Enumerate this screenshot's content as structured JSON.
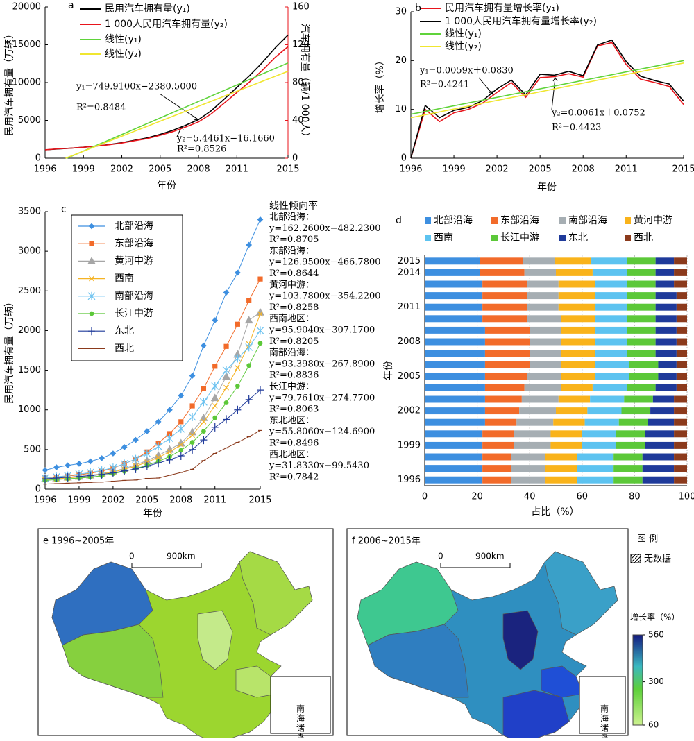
{
  "chart_data": [
    {
      "type": "line",
      "label": "a",
      "x": [
        1996,
        1997,
        1998,
        1999,
        2000,
        2001,
        2002,
        2003,
        2004,
        2005,
        2006,
        2007,
        2008,
        2009,
        2010,
        2011,
        2012,
        2013,
        2014,
        2015
      ],
      "xlim": [
        1996,
        2015
      ],
      "xticks": [
        1996,
        1999,
        2002,
        2005,
        2008,
        2011,
        2015
      ],
      "xlabel": "年份",
      "ylabel": "民用汽车拥有量（万辆）",
      "ylim": [
        0,
        20000
      ],
      "yticks": [
        0,
        5000,
        10000,
        15000,
        20000
      ],
      "y2label": "汽车拥有量（辆/1 000人）",
      "y2lim": [
        0,
        160
      ],
      "y2ticks": [
        0,
        40,
        80,
        120,
        160
      ],
      "series": [
        {
          "name": "民用汽车拥有量(y₁)",
          "color": "#000000",
          "values": [
            1100,
            1220,
            1320,
            1450,
            1610,
            1800,
            2050,
            2380,
            2690,
            3160,
            3700,
            4360,
            5100,
            6280,
            7800,
            9360,
            10930,
            12670,
            14600,
            16280
          ]
        },
        {
          "name": "1 000人民用汽车拥有量(y₂)",
          "color": "#e8141b",
          "axis": "y2",
          "values": [
            8.9,
            9.9,
            10.6,
            11.5,
            12.8,
            14.2,
            16.0,
            18.5,
            20.8,
            24.2,
            28.1,
            33.0,
            38.4,
            47.0,
            58.2,
            69.5,
            80.7,
            93.1,
            106.7,
            118.1
          ]
        },
        {
          "name": "线性(y₁)",
          "color": "#5fd33a",
          "x": [
            1997.7,
            2015
          ],
          "values": [
            0,
            12600
          ]
        },
        {
          "name": "线性(y₂)",
          "color": "#f0e630",
          "axis": "y2",
          "x": [
            1997.6,
            2015
          ],
          "values": [
            0,
            92
          ]
        }
      ],
      "annotations": [
        "y₁=749.9100x−2380.5000",
        "R²=0.8484",
        "y₂=5.4461x−16.1660",
        "R²=0.8526"
      ]
    },
    {
      "type": "line",
      "label": "b",
      "x": [
        1996,
        1997,
        1998,
        1999,
        2000,
        2001,
        2002,
        2003,
        2004,
        2005,
        2006,
        2007,
        2008,
        2009,
        2010,
        2011,
        2012,
        2013,
        2014,
        2015
      ],
      "xlim": [
        1996,
        2015
      ],
      "xticks": [
        1996,
        1999,
        2002,
        2005,
        2008,
        2011,
        2015
      ],
      "xlabel": "年份",
      "ylabel": "增长率（%）",
      "ylim": [
        0,
        30
      ],
      "yticks": [
        0,
        10,
        20,
        30
      ],
      "series": [
        {
          "name": "民用汽车拥有量增长率(y₁)",
          "color": "#e8141b",
          "values": [
            0,
            10,
            7.5,
            9.3,
            10.0,
            11.3,
            13.5,
            15.5,
            12.5,
            16.5,
            16.7,
            17.3,
            16.6,
            23.0,
            23.7,
            19.2,
            16.2,
            15.5,
            14.7,
            11.0
          ]
        },
        {
          "name": "1 000人民用汽车拥有量增长率(y₂)",
          "color": "#000000",
          "values": [
            0,
            10.8,
            8.3,
            9.8,
            10.4,
            11.8,
            14.2,
            16.0,
            13.0,
            17.2,
            17.0,
            17.8,
            16.9,
            23.2,
            24.2,
            19.8,
            16.8,
            15.9,
            15.2,
            11.7
          ]
        },
        {
          "name": "线性(y₁)",
          "color": "#5fd33a",
          "x": [
            1996,
            2015
          ],
          "values": [
            9,
            20
          ]
        },
        {
          "name": "线性(y₂)",
          "color": "#f0e630",
          "x": [
            1996,
            2015
          ],
          "values": [
            8.3,
            19.5
          ]
        }
      ],
      "annotations": [
        "y₁=0.0059x＋0.0830",
        "R²=0.4241",
        "y₂=0.0061x＋0.0752",
        "R²=0.4423"
      ]
    },
    {
      "type": "line",
      "label": "c",
      "x": [
        1996,
        1997,
        1998,
        1999,
        2000,
        2001,
        2002,
        2003,
        2004,
        2005,
        2006,
        2007,
        2008,
        2009,
        2010,
        2011,
        2012,
        2013,
        2014,
        2015
      ],
      "xlim": [
        1996,
        2015
      ],
      "xticks": [
        1996,
        1999,
        2002,
        2005,
        2008,
        2011,
        2015
      ],
      "xlabel": "年份",
      "ylabel": "民用汽车拥有量（万辆）",
      "ylim": [
        0,
        3500
      ],
      "yticks": [
        0,
        500,
        1000,
        1500,
        2000,
        2500,
        3000,
        3500
      ],
      "series": [
        {
          "name": "北部沿海",
          "color": "#3d8fe0",
          "marker": "diamond",
          "values": [
            240,
            275,
            300,
            320,
            350,
            390,
            450,
            530,
            620,
            730,
            850,
            1000,
            1180,
            1430,
            1810,
            2130,
            2480,
            2730,
            3080,
            3400
          ]
        },
        {
          "name": "东部沿海",
          "color": "#f26b2a",
          "marker": "square",
          "values": [
            140,
            150,
            165,
            180,
            200,
            225,
            265,
            320,
            380,
            470,
            580,
            700,
            850,
            1050,
            1270,
            1550,
            1800,
            2080,
            2380,
            2650
          ]
        },
        {
          "name": "黄河中游",
          "color": "#a6a6a6",
          "marker": "triangle",
          "values": [
            130,
            140,
            150,
            160,
            175,
            195,
            225,
            260,
            305,
            360,
            425,
            500,
            580,
            720,
            900,
            1150,
            1420,
            1700,
            2130,
            2230
          ]
        },
        {
          "name": "西南",
          "color": "#f5b324",
          "marker": "x",
          "values": [
            120,
            130,
            140,
            155,
            170,
            190,
            215,
            250,
            290,
            340,
            400,
            470,
            560,
            680,
            850,
            1050,
            1280,
            1530,
            1830,
            2210
          ]
        },
        {
          "name": "南部沿海",
          "color": "#6ec3f0",
          "marker": "asterisk",
          "values": [
            140,
            155,
            170,
            190,
            210,
            235,
            270,
            320,
            380,
            450,
            540,
            640,
            760,
            910,
            1100,
            1300,
            1500,
            1650,
            1790,
            2000
          ]
        },
        {
          "name": "长江中游",
          "color": "#5cc839",
          "marker": "circle",
          "values": [
            110,
            120,
            130,
            140,
            150,
            170,
            195,
            225,
            260,
            300,
            350,
            410,
            490,
            590,
            730,
            900,
            1090,
            1300,
            1560,
            1840
          ]
        },
        {
          "name": "东北",
          "color": "#1f3a9a",
          "marker": "plus",
          "values": [
            130,
            140,
            150,
            160,
            170,
            185,
            205,
            230,
            255,
            290,
            330,
            370,
            420,
            500,
            620,
            780,
            880,
            1000,
            1130,
            1250
          ]
        },
        {
          "name": "西北",
          "color": "#8b3a1c",
          "marker": "dash",
          "values": [
            65,
            70,
            75,
            80,
            85,
            90,
            100,
            110,
            115,
            135,
            140,
            175,
            210,
            250,
            360,
            450,
            520,
            590,
            660,
            740
          ]
        }
      ],
      "fit_title": "线性倾向率",
      "fit_lines": [
        "北部沿海：",
        "y=162.2600x−482.2300",
        "R²=0.8705",
        "东部沿海：",
        "y=126.9500x−466.7800",
        "R²=0.8644",
        "黄河中游：",
        "y=103.7800x−354.2200",
        "R²=0.8258",
        "西南地区：",
        "y=95.9040x−307.1700",
        "R²=0.8205",
        "南部沿海：",
        "y=93.3980x−267.8900",
        "R²=0.8836",
        "长江中游：",
        "y=79.7610x−274.7700",
        "R²=0.8063",
        "东北地区：",
        "y=55.8060x−124.6900",
        "R²=0.8496",
        "西北地区：",
        "y=31.8330x−99.5430",
        "R²=0.7842"
      ]
    },
    {
      "type": "stacked_barh",
      "label": "d",
      "categories": [
        1996,
        null,
        null,
        1999,
        null,
        null,
        2002,
        null,
        null,
        2005,
        null,
        null,
        2008,
        null,
        null,
        2011,
        null,
        null,
        2014,
        2015
      ],
      "xlim": [
        0,
        100
      ],
      "xticks": [
        0,
        20,
        40,
        60,
        80,
        100
      ],
      "xlabel": "占比（%）",
      "ylabel": "年份",
      "grid": true,
      "series": [
        {
          "name": "北部沿海",
          "color": "#3d8fe0",
          "values": [
            22,
            22,
            22,
            22,
            22,
            23,
            23,
            23,
            23,
            23,
            23,
            23,
            23,
            23,
            22,
            22,
            22,
            22,
            21,
            21
          ]
        },
        {
          "name": "东部沿海",
          "color": "#f26b2a",
          "values": [
            11,
            11,
            11,
            12,
            12,
            12,
            13,
            14,
            15,
            16,
            17,
            17,
            17,
            17,
            17,
            17,
            17,
            17,
            17,
            16.5
          ]
        },
        {
          "name": "南部沿海",
          "color": "#a6aeb3",
          "values": [
            13,
            13,
            13,
            14,
            14,
            14,
            14,
            14,
            14,
            13,
            12,
            12,
            12,
            12,
            13,
            12,
            12,
            12,
            12,
            12
          ]
        },
        {
          "name": "黄河中游",
          "color": "#f9b31b",
          "values": [
            12,
            12,
            12,
            12,
            12,
            12,
            12,
            12,
            12,
            13,
            13,
            13,
            13,
            13,
            13,
            14,
            14,
            14,
            14,
            14
          ]
        },
        {
          "name": "西南",
          "color": "#5dc3f0",
          "values": [
            14,
            14,
            14,
            13,
            13,
            13,
            13,
            13,
            13,
            13,
            13,
            12,
            12,
            12,
            12,
            12,
            12,
            12,
            13,
            13.5
          ]
        },
        {
          "name": "长江中游",
          "color": "#5cc839",
          "values": [
            11,
            11,
            11,
            11,
            11,
            11,
            11,
            11,
            11,
            11,
            11,
            11,
            11,
            11,
            11,
            11,
            11,
            11,
            11,
            11
          ]
        },
        {
          "name": "东北",
          "color": "#1f3a9a",
          "values": [
            12,
            12,
            12,
            11,
            11,
            10,
            9,
            8,
            8,
            7,
            7,
            8,
            8,
            8,
            8,
            8,
            8,
            7,
            7,
            7
          ]
        },
        {
          "name": "西北",
          "color": "#8b3a1c",
          "values": [
            5,
            5,
            5,
            5,
            5,
            5,
            5,
            5,
            4,
            4,
            4,
            4,
            4,
            4,
            4,
            4,
            4,
            5,
            5,
            5
          ]
        }
      ]
    }
  ],
  "maps": [
    {
      "title": "e 1996~2005年"
    },
    {
      "title": "f 2006~2015年"
    }
  ],
  "scale": {
    "zero": "0",
    "distance": "900km"
  },
  "inset_label": "南海诸岛",
  "legend": {
    "title": "图 例",
    "no_data": "无数据",
    "colorbar_title": "增长率（%）",
    "lim": [
      60,
      560
    ],
    "ticks": [
      60,
      300,
      560
    ]
  }
}
